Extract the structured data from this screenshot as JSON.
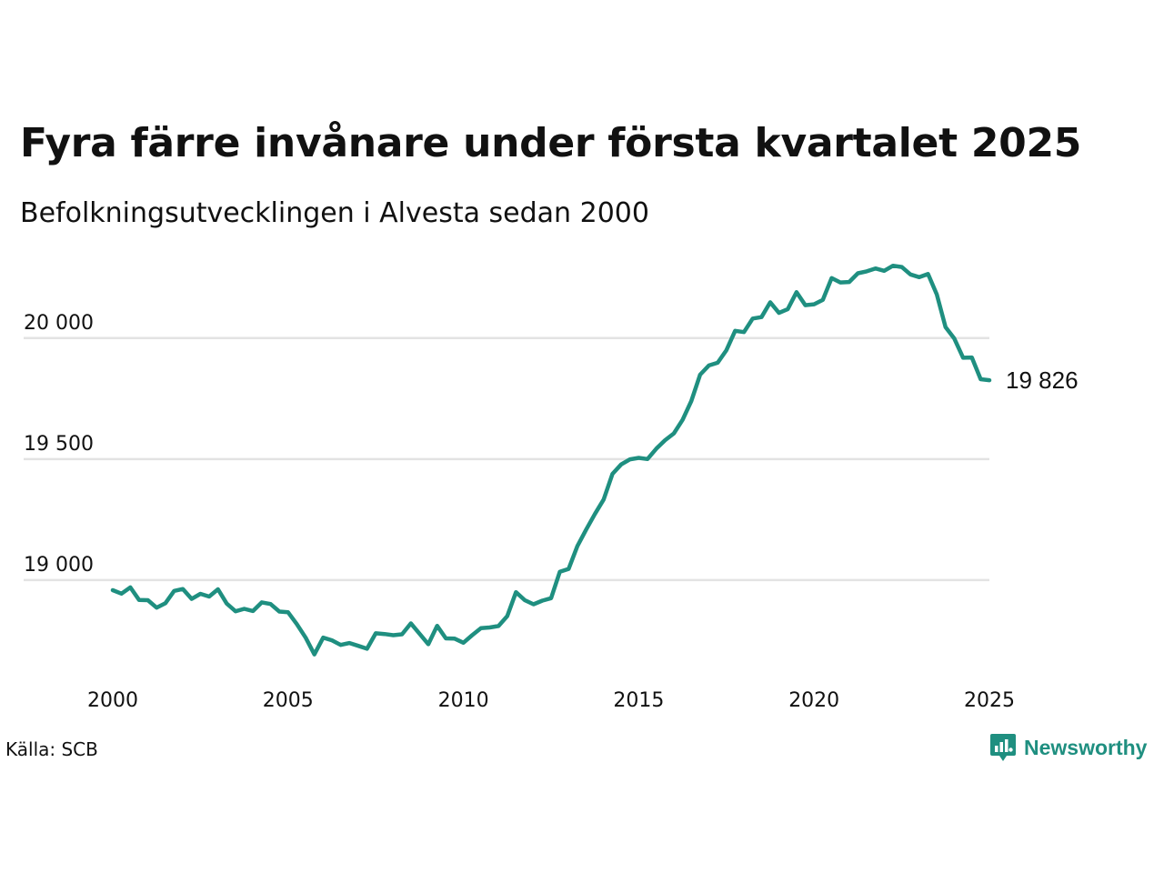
{
  "header": {
    "title": "Fyra färre invånare under första kvartalet 2025",
    "subtitle": "Befolkningsutvecklingen i Alvesta sedan 2000"
  },
  "footer": {
    "source": "Källa: SCB",
    "brand": "Newsworthy"
  },
  "colors": {
    "line": "#1f8f80",
    "grid": "#e3e3e3",
    "text": "#111111",
    "brand": "#1f8f80"
  },
  "chart_data": {
    "type": "line",
    "title": "Fyra färre invånare under första kvartalet 2025",
    "subtitle": "Befolkningsutvecklingen i Alvesta sedan 2000",
    "xlabel": "",
    "ylabel": "",
    "xlim": [
      2000,
      2025
    ],
    "ylim": [
      18650,
      20330
    ],
    "grid": true,
    "legend": "none",
    "x_ticks": [
      {
        "value": 2000,
        "label": "2000"
      },
      {
        "value": 2005,
        "label": "2005"
      },
      {
        "value": 2010,
        "label": "2010"
      },
      {
        "value": 2015,
        "label": "2015"
      },
      {
        "value": 2020,
        "label": "2020"
      },
      {
        "value": 2025,
        "label": "2025"
      }
    ],
    "y_ticks": [
      {
        "value": 19000,
        "label": "19 000"
      },
      {
        "value": 19500,
        "label": "19 500"
      },
      {
        "value": 20000,
        "label": "20 000"
      }
    ],
    "end_label": "19 826",
    "series": [
      {
        "x": [
          2000.0,
          2000.25,
          2000.5,
          2000.75,
          2001.0,
          2001.25,
          2001.5,
          2001.75,
          2002.0,
          2002.25,
          2002.5,
          2002.75,
          2003.0,
          2003.25,
          2003.5,
          2003.75,
          2004.0,
          2004.25,
          2004.5,
          2004.75,
          2005.0,
          2005.25,
          2005.5,
          2005.75,
          2006.0,
          2006.25,
          2006.5,
          2006.75,
          2007.0,
          2007.25,
          2007.5,
          2007.75,
          2008.0,
          2008.25,
          2008.5,
          2008.75,
          2009.0,
          2009.25,
          2009.5,
          2009.75,
          2010.0,
          2010.25,
          2010.5,
          2010.75,
          2011.0,
          2011.25,
          2011.5,
          2011.75,
          2012.0,
          2012.25,
          2012.5,
          2012.75,
          2013.0,
          2013.25,
          2013.5,
          2013.75,
          2014.0,
          2014.25,
          2014.5,
          2014.75,
          2015.0,
          2015.25,
          2015.5,
          2015.75,
          2016.0,
          2016.25,
          2016.5,
          2016.75,
          2017.0,
          2017.25,
          2017.5,
          2017.75,
          2018.0,
          2018.25,
          2018.5,
          2018.75,
          2019.0,
          2019.25,
          2019.5,
          2019.75,
          2020.0,
          2020.25,
          2020.5,
          2020.75,
          2021.0,
          2021.25,
          2021.5,
          2021.75,
          2022.0,
          2022.25,
          2022.5,
          2022.75,
          2023.0,
          2023.25,
          2023.5,
          2023.75,
          2024.0,
          2024.25,
          2024.5,
          2024.75,
          2025.0
        ],
        "values": [
          18958,
          18944,
          18970,
          18918,
          18917,
          18886,
          18904,
          18955,
          18963,
          18922,
          18943,
          18932,
          18962,
          18903,
          18871,
          18881,
          18872,
          18908,
          18901,
          18870,
          18867,
          18818,
          18762,
          18693,
          18762,
          18751,
          18732,
          18740,
          18728,
          18716,
          18780,
          18777,
          18772,
          18776,
          18821,
          18778,
          18735,
          18811,
          18759,
          18758,
          18741,
          18772,
          18801,
          18804,
          18810,
          18851,
          18950,
          18917,
          18900,
          18915,
          18925,
          19034,
          19046,
          19140,
          19209,
          19273,
          19333,
          19439,
          19478,
          19499,
          19505,
          19500,
          19543,
          19578,
          19606,
          19662,
          19740,
          19849,
          19887,
          19898,
          19950,
          20030,
          20025,
          20081,
          20087,
          20148,
          20104,
          20120,
          20190,
          20136,
          20140,
          20158,
          20248,
          20230,
          20232,
          20268,
          20276,
          20288,
          20278,
          20299,
          20294,
          20263,
          20252,
          20265,
          20180,
          20045,
          19998,
          19919,
          19920,
          19830,
          19826
        ]
      }
    ]
  }
}
